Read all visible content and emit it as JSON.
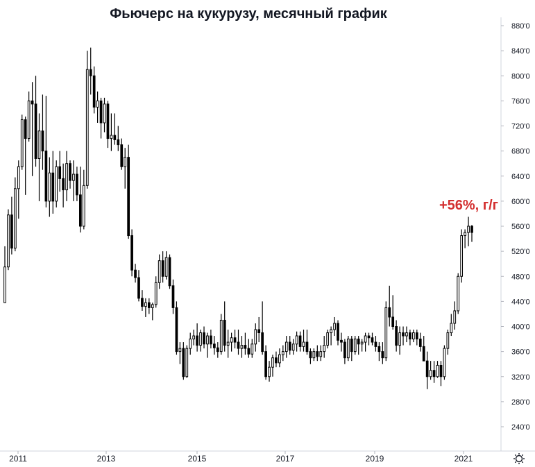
{
  "chart_data": {
    "type": "candlestick",
    "title": "Фьючерс на кукурузу, месячный график",
    "annotation": "+56%, г/г",
    "y_ticks": [
      "880'0",
      "840'0",
      "800'0",
      "760'0",
      "720'0",
      "680'0",
      "640'0",
      "600'0",
      "560'0",
      "520'0",
      "480'0",
      "440'0",
      "400'0",
      "360'0",
      "320'0",
      "280'0",
      "240'0"
    ],
    "x_ticks": [
      "2011",
      "2013",
      "2015",
      "2017",
      "2019",
      "2021"
    ],
    "ylim": [
      200,
      900
    ],
    "candles": [
      {
        "o": 438,
        "h": 528,
        "l": 438,
        "c": 495
      },
      {
        "o": 495,
        "h": 587,
        "l": 490,
        "c": 578
      },
      {
        "o": 578,
        "h": 607,
        "l": 515,
        "c": 525
      },
      {
        "o": 525,
        "h": 638,
        "l": 520,
        "c": 620
      },
      {
        "o": 620,
        "h": 665,
        "l": 572,
        "c": 655
      },
      {
        "o": 655,
        "h": 738,
        "l": 650,
        "c": 730
      },
      {
        "o": 730,
        "h": 735,
        "l": 610,
        "c": 700
      },
      {
        "o": 700,
        "h": 775,
        "l": 695,
        "c": 760
      },
      {
        "o": 760,
        "h": 790,
        "l": 640,
        "c": 755
      },
      {
        "o": 755,
        "h": 800,
        "l": 655,
        "c": 668
      },
      {
        "o": 668,
        "h": 740,
        "l": 600,
        "c": 712
      },
      {
        "o": 712,
        "h": 770,
        "l": 650,
        "c": 680
      },
      {
        "o": 680,
        "h": 768,
        "l": 590,
        "c": 600
      },
      {
        "o": 600,
        "h": 670,
        "l": 575,
        "c": 645
      },
      {
        "o": 645,
        "h": 680,
        "l": 580,
        "c": 600
      },
      {
        "o": 600,
        "h": 665,
        "l": 590,
        "c": 655
      },
      {
        "o": 655,
        "h": 680,
        "l": 615,
        "c": 636
      },
      {
        "o": 636,
        "h": 660,
        "l": 590,
        "c": 618
      },
      {
        "o": 618,
        "h": 680,
        "l": 600,
        "c": 660
      },
      {
        "o": 660,
        "h": 665,
        "l": 620,
        "c": 633
      },
      {
        "o": 633,
        "h": 665,
        "l": 600,
        "c": 643
      },
      {
        "o": 643,
        "h": 655,
        "l": 600,
        "c": 610
      },
      {
        "o": 610,
        "h": 655,
        "l": 550,
        "c": 560
      },
      {
        "o": 560,
        "h": 650,
        "l": 555,
        "c": 625
      },
      {
        "o": 625,
        "h": 840,
        "l": 620,
        "c": 810
      },
      {
        "o": 810,
        "h": 845,
        "l": 770,
        "c": 800
      },
      {
        "o": 800,
        "h": 815,
        "l": 740,
        "c": 750
      },
      {
        "o": 750,
        "h": 775,
        "l": 725,
        "c": 760
      },
      {
        "o": 760,
        "h": 765,
        "l": 700,
        "c": 725
      },
      {
        "o": 725,
        "h": 765,
        "l": 710,
        "c": 755
      },
      {
        "o": 755,
        "h": 760,
        "l": 685,
        "c": 700
      },
      {
        "o": 700,
        "h": 740,
        "l": 680,
        "c": 705
      },
      {
        "o": 705,
        "h": 740,
        "l": 690,
        "c": 698
      },
      {
        "o": 698,
        "h": 720,
        "l": 680,
        "c": 690
      },
      {
        "o": 690,
        "h": 700,
        "l": 650,
        "c": 655
      },
      {
        "o": 655,
        "h": 685,
        "l": 620,
        "c": 670
      },
      {
        "o": 670,
        "h": 690,
        "l": 540,
        "c": 545
      },
      {
        "o": 545,
        "h": 555,
        "l": 480,
        "c": 490
      },
      {
        "o": 490,
        "h": 500,
        "l": 470,
        "c": 478
      },
      {
        "o": 478,
        "h": 490,
        "l": 440,
        "c": 445
      },
      {
        "o": 445,
        "h": 458,
        "l": 425,
        "c": 432
      },
      {
        "o": 432,
        "h": 445,
        "l": 415,
        "c": 438
      },
      {
        "o": 438,
        "h": 445,
        "l": 420,
        "c": 430
      },
      {
        "o": 430,
        "h": 438,
        "l": 410,
        "c": 435
      },
      {
        "o": 435,
        "h": 480,
        "l": 430,
        "c": 470
      },
      {
        "o": 470,
        "h": 515,
        "l": 460,
        "c": 505
      },
      {
        "o": 505,
        "h": 520,
        "l": 470,
        "c": 480
      },
      {
        "o": 480,
        "h": 520,
        "l": 475,
        "c": 510
      },
      {
        "o": 510,
        "h": 515,
        "l": 460,
        "c": 465
      },
      {
        "o": 465,
        "h": 475,
        "l": 420,
        "c": 430
      },
      {
        "o": 430,
        "h": 440,
        "l": 355,
        "c": 360
      },
      {
        "o": 360,
        "h": 375,
        "l": 340,
        "c": 365
      },
      {
        "o": 365,
        "h": 375,
        "l": 315,
        "c": 320
      },
      {
        "o": 320,
        "h": 370,
        "l": 318,
        "c": 365
      },
      {
        "o": 365,
        "h": 390,
        "l": 355,
        "c": 380
      },
      {
        "o": 380,
        "h": 395,
        "l": 370,
        "c": 385
      },
      {
        "o": 385,
        "h": 405,
        "l": 360,
        "c": 370
      },
      {
        "o": 370,
        "h": 395,
        "l": 360,
        "c": 390
      },
      {
        "o": 390,
        "h": 400,
        "l": 365,
        "c": 372
      },
      {
        "o": 372,
        "h": 390,
        "l": 350,
        "c": 385
      },
      {
        "o": 385,
        "h": 395,
        "l": 365,
        "c": 372
      },
      {
        "o": 372,
        "h": 385,
        "l": 355,
        "c": 366
      },
      {
        "o": 366,
        "h": 375,
        "l": 350,
        "c": 360
      },
      {
        "o": 360,
        "h": 420,
        "l": 355,
        "c": 410
      },
      {
        "o": 410,
        "h": 440,
        "l": 360,
        "c": 370
      },
      {
        "o": 370,
        "h": 395,
        "l": 350,
        "c": 375
      },
      {
        "o": 375,
        "h": 390,
        "l": 360,
        "c": 382
      },
      {
        "o": 382,
        "h": 395,
        "l": 365,
        "c": 375
      },
      {
        "o": 375,
        "h": 395,
        "l": 355,
        "c": 365
      },
      {
        "o": 365,
        "h": 385,
        "l": 350,
        "c": 370
      },
      {
        "o": 370,
        "h": 390,
        "l": 355,
        "c": 365
      },
      {
        "o": 365,
        "h": 380,
        "l": 350,
        "c": 356
      },
      {
        "o": 356,
        "h": 380,
        "l": 350,
        "c": 372
      },
      {
        "o": 372,
        "h": 405,
        "l": 360,
        "c": 395
      },
      {
        "o": 395,
        "h": 415,
        "l": 375,
        "c": 390
      },
      {
        "o": 390,
        "h": 440,
        "l": 355,
        "c": 360
      },
      {
        "o": 360,
        "h": 370,
        "l": 315,
        "c": 320
      },
      {
        "o": 320,
        "h": 345,
        "l": 312,
        "c": 335
      },
      {
        "o": 335,
        "h": 355,
        "l": 320,
        "c": 350
      },
      {
        "o": 350,
        "h": 360,
        "l": 335,
        "c": 342
      },
      {
        "o": 342,
        "h": 365,
        "l": 335,
        "c": 355
      },
      {
        "o": 355,
        "h": 370,
        "l": 345,
        "c": 360
      },
      {
        "o": 360,
        "h": 385,
        "l": 350,
        "c": 375
      },
      {
        "o": 375,
        "h": 385,
        "l": 355,
        "c": 362
      },
      {
        "o": 362,
        "h": 380,
        "l": 355,
        "c": 372
      },
      {
        "o": 372,
        "h": 392,
        "l": 360,
        "c": 385
      },
      {
        "o": 385,
        "h": 392,
        "l": 360,
        "c": 368
      },
      {
        "o": 368,
        "h": 395,
        "l": 360,
        "c": 375
      },
      {
        "o": 375,
        "h": 395,
        "l": 355,
        "c": 360
      },
      {
        "o": 360,
        "h": 365,
        "l": 340,
        "c": 350
      },
      {
        "o": 350,
        "h": 365,
        "l": 345,
        "c": 360
      },
      {
        "o": 360,
        "h": 370,
        "l": 345,
        "c": 352
      },
      {
        "o": 352,
        "h": 370,
        "l": 345,
        "c": 360
      },
      {
        "o": 360,
        "h": 385,
        "l": 350,
        "c": 370
      },
      {
        "o": 370,
        "h": 395,
        "l": 365,
        "c": 390
      },
      {
        "o": 390,
        "h": 400,
        "l": 370,
        "c": 395
      },
      {
        "o": 395,
        "h": 415,
        "l": 385,
        "c": 405
      },
      {
        "o": 405,
        "h": 410,
        "l": 370,
        "c": 378
      },
      {
        "o": 378,
        "h": 390,
        "l": 360,
        "c": 375
      },
      {
        "o": 375,
        "h": 380,
        "l": 340,
        "c": 350
      },
      {
        "o": 350,
        "h": 385,
        "l": 345,
        "c": 380
      },
      {
        "o": 380,
        "h": 385,
        "l": 345,
        "c": 360
      },
      {
        "o": 360,
        "h": 385,
        "l": 355,
        "c": 380
      },
      {
        "o": 380,
        "h": 385,
        "l": 355,
        "c": 372
      },
      {
        "o": 372,
        "h": 380,
        "l": 360,
        "c": 375
      },
      {
        "o": 375,
        "h": 390,
        "l": 360,
        "c": 385
      },
      {
        "o": 385,
        "h": 390,
        "l": 370,
        "c": 382
      },
      {
        "o": 382,
        "h": 390,
        "l": 370,
        "c": 375
      },
      {
        "o": 375,
        "h": 385,
        "l": 360,
        "c": 368
      },
      {
        "o": 368,
        "h": 375,
        "l": 345,
        "c": 360
      },
      {
        "o": 360,
        "h": 375,
        "l": 340,
        "c": 350
      },
      {
        "o": 350,
        "h": 440,
        "l": 345,
        "c": 430
      },
      {
        "o": 430,
        "h": 465,
        "l": 400,
        "c": 415
      },
      {
        "o": 415,
        "h": 450,
        "l": 395,
        "c": 400
      },
      {
        "o": 400,
        "h": 410,
        "l": 360,
        "c": 370
      },
      {
        "o": 370,
        "h": 400,
        "l": 355,
        "c": 390
      },
      {
        "o": 390,
        "h": 400,
        "l": 370,
        "c": 385
      },
      {
        "o": 385,
        "h": 400,
        "l": 375,
        "c": 390
      },
      {
        "o": 390,
        "h": 395,
        "l": 370,
        "c": 380
      },
      {
        "o": 380,
        "h": 395,
        "l": 375,
        "c": 390
      },
      {
        "o": 390,
        "h": 395,
        "l": 370,
        "c": 380
      },
      {
        "o": 380,
        "h": 390,
        "l": 360,
        "c": 368
      },
      {
        "o": 368,
        "h": 385,
        "l": 345,
        "c": 345
      },
      {
        "o": 345,
        "h": 360,
        "l": 300,
        "c": 320
      },
      {
        "o": 320,
        "h": 345,
        "l": 315,
        "c": 330
      },
      {
        "o": 330,
        "h": 345,
        "l": 310,
        "c": 320
      },
      {
        "o": 320,
        "h": 345,
        "l": 318,
        "c": 338
      },
      {
        "o": 338,
        "h": 345,
        "l": 305,
        "c": 320
      },
      {
        "o": 320,
        "h": 370,
        "l": 315,
        "c": 365
      },
      {
        "o": 365,
        "h": 395,
        "l": 355,
        "c": 390
      },
      {
        "o": 390,
        "h": 420,
        "l": 385,
        "c": 405
      },
      {
        "o": 405,
        "h": 440,
        "l": 395,
        "c": 425
      },
      {
        "o": 425,
        "h": 485,
        "l": 420,
        "c": 480
      },
      {
        "o": 480,
        "h": 555,
        "l": 470,
        "c": 545
      },
      {
        "o": 545,
        "h": 555,
        "l": 525,
        "c": 550
      },
      {
        "o": 550,
        "h": 575,
        "l": 528,
        "c": 560
      },
      {
        "o": 560,
        "h": 562,
        "l": 535,
        "c": 550
      }
    ]
  }
}
